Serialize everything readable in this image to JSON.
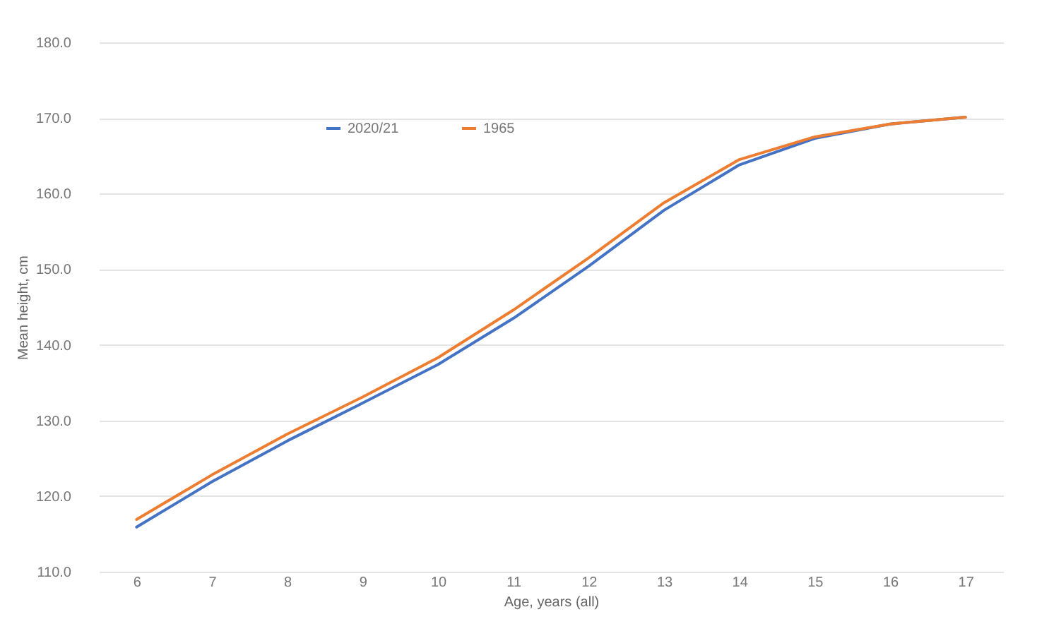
{
  "chart_data": {
    "type": "line",
    "xlabel": "Age, years (all)",
    "ylabel": "Mean height, cm",
    "categories": [
      "6",
      "7",
      "8",
      "9",
      "10",
      "11",
      "12",
      "13",
      "14",
      "15",
      "16",
      "17"
    ],
    "series": [
      {
        "name": "2020/21",
        "color": "#4472c4",
        "values": [
          115.9,
          121.9,
          127.3,
          132.3,
          137.4,
          143.5,
          150.4,
          157.8,
          163.8,
          167.3,
          169.2,
          170.1
        ]
      },
      {
        "name": "1965",
        "color": "#ed7d31",
        "values": [
          116.9,
          122.8,
          128.2,
          133.1,
          138.3,
          144.6,
          151.5,
          158.8,
          164.5,
          167.5,
          169.2,
          170.1
        ]
      }
    ],
    "ylim": [
      110,
      180
    ],
    "yticks": [
      {
        "value": 110,
        "label": "110.0"
      },
      {
        "value": 120,
        "label": "120.0"
      },
      {
        "value": 130,
        "label": "130.0"
      },
      {
        "value": 140,
        "label": "140.0"
      },
      {
        "value": 150,
        "label": "150.0"
      },
      {
        "value": 160,
        "label": "160.0"
      },
      {
        "value": 170,
        "label": "170.0"
      },
      {
        "value": 180,
        "label": "180.0"
      }
    ],
    "grid": "y",
    "legend": "top left",
    "marker": "none",
    "line_style": "solid"
  }
}
